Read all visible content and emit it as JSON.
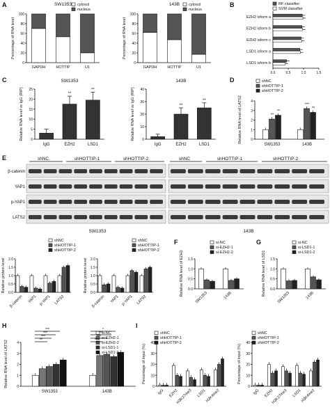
{
  "panels": {
    "A": {
      "letter": "A",
      "ylabel": "Percentage of RNA level",
      "legend": [
        "cytosol",
        "nucleus"
      ],
      "colors": {
        "cytosol": "#ffffff",
        "nucleus": "#555555"
      },
      "charts": [
        {
          "title": "SW1353",
          "categories": [
            "GAPDH",
            "HOTTIP",
            "U1"
          ],
          "cytosol": [
            70,
            53,
            20
          ],
          "ylim": [
            0,
            100
          ],
          "ticks": [
            "0",
            "20",
            "40",
            "60",
            "80",
            "100"
          ]
        },
        {
          "title": "143B",
          "categories": [
            "GAPDH",
            "HOTTIP",
            "U1"
          ],
          "cytosol": [
            62,
            47,
            17
          ],
          "ylim": [
            0,
            100
          ],
          "ticks": [
            "0",
            "20",
            "40",
            "60",
            "80",
            "100"
          ]
        }
      ]
    },
    "B": {
      "letter": "B",
      "legend": [
        "RF classifier",
        "SVM classifier"
      ],
      "categories": [
        "EZH2 isform a",
        "EZH2 isform b",
        "EZH2 isform c",
        "LSD1 isform a",
        "LSD1 isform b"
      ],
      "rf": [
        0.96,
        0.95,
        0.92,
        0.88,
        0.45
      ],
      "svm": [
        0.98,
        0.97,
        0.94,
        0.9,
        0.4
      ],
      "ticks": [
        "0.0",
        "0.5",
        "1.0",
        "1.5"
      ],
      "xlim": [
        0,
        1.5
      ]
    },
    "C": {
      "letter": "C",
      "charts": [
        {
          "title": "SW1353",
          "ylabel": "Relative RNA level vs IgG (RIP)",
          "categories": [
            "IgG",
            "EZH2",
            "LSD1"
          ],
          "values": [
            3,
            17.5,
            19.5
          ],
          "errors": [
            2,
            4,
            4
          ],
          "ylim": [
            0,
            25
          ],
          "ticks": [
            "0",
            "5",
            "10",
            "15",
            "20",
            "25"
          ],
          "stars": [
            "",
            "**",
            "**"
          ]
        },
        {
          "title": "143B",
          "ylabel": "Relative RNA level vs IgG (RIP)",
          "categories": [
            "IgG",
            "EZH2",
            "LSD1"
          ],
          "values": [
            2,
            20,
            25
          ],
          "errors": [
            2,
            5,
            4
          ],
          "ylim": [
            0,
            40
          ],
          "ticks": [
            "0",
            "10",
            "20",
            "30",
            "40"
          ],
          "stars": [
            "",
            "**",
            "**"
          ]
        }
      ]
    },
    "D": {
      "letter": "D",
      "ylabel": "Relative RNA level of LATS2",
      "legend": [
        "shNC",
        "shHOTTIP-1",
        "shHOTTIP-2"
      ],
      "groups": [
        "SW1353",
        "143B"
      ],
      "series": [
        {
          "name": "shNC",
          "values": [
            1.0,
            1.0
          ]
        },
        {
          "name": "shHOTTIP-1",
          "values": [
            2.1,
            3.2
          ]
        },
        {
          "name": "shHOTTIP-2",
          "values": [
            2.5,
            2.8
          ]
        }
      ],
      "stars": [
        [
          "",
          "**",
          "**"
        ],
        [
          "",
          "***",
          "**"
        ]
      ],
      "ylim": [
        0,
        4
      ],
      "ticks": [
        "0",
        "1",
        "2",
        "3",
        "4"
      ]
    },
    "E": {
      "letter": "E",
      "left_header": [
        "shNC",
        "shHOTTIP-1",
        "shHOTTIP-2"
      ],
      "right_header": [
        "shNC",
        "shHOTTIP-1",
        "shHOTTIP-2"
      ],
      "rows": [
        "β-catenin",
        "YAP1",
        "p-YAP1",
        "LATS2"
      ],
      "left_title": "SW1353",
      "right_title": "143B",
      "quant": {
        "ylabel": "Relative protein level",
        "legend": [
          "shNC",
          "shHOTTIP-1",
          "shHOTTIP-2"
        ],
        "categories": [
          "β-catenin",
          "YAP1",
          "p-YAP1",
          "LATS2"
        ],
        "sw1353": [
          [
            1.0,
            0.35,
            0.3
          ],
          [
            1.0,
            0.25,
            0.2
          ],
          [
            1.0,
            0.55,
            0.65
          ],
          [
            1.0,
            1.5,
            1.6
          ]
        ],
        "b143": [
          [
            1.0,
            0.45,
            0.5
          ],
          [
            1.0,
            0.3,
            0.25
          ],
          [
            1.0,
            1.3,
            1.2
          ],
          [
            1.0,
            1.4,
            1.5
          ]
        ],
        "ylim": [
          0,
          2.0
        ],
        "ticks": [
          "0.0",
          "0.5",
          "1.0",
          "1.5",
          "2.0"
        ]
      }
    },
    "F": {
      "letter": "F",
      "ylabel": "Relative RNA level of EZH2",
      "legend": [
        "si-NC",
        "si-EZH2-1",
        "si-EZH2-2"
      ],
      "groups": [
        "SW1353",
        "143B"
      ],
      "series": [
        {
          "name": "si-NC",
          "values": [
            1.0,
            1.0
          ]
        },
        {
          "name": "si-EZH2-1",
          "values": [
            0.45,
            0.42
          ]
        },
        {
          "name": "si-EZH2-2",
          "values": [
            0.38,
            0.5
          ]
        }
      ],
      "ylim": [
        0,
        1.5
      ],
      "ticks": [
        "0.0",
        "0.5",
        "1.0",
        "1.5"
      ]
    },
    "G": {
      "letter": "G",
      "ylabel": "Relative RNA level of LSD1",
      "legend": [
        "si-NC",
        "si-LSD1-1",
        "si-LSD1-2"
      ],
      "groups": [
        "SW1353",
        "143B"
      ],
      "series": [
        {
          "name": "si-NC",
          "values": [
            1.0,
            1.0
          ]
        },
        {
          "name": "si-LSD1-1",
          "values": [
            0.4,
            0.6
          ]
        },
        {
          "name": "si-LSD1-2",
          "values": [
            0.42,
            0.45
          ]
        }
      ],
      "ylim": [
        0,
        1.5
      ],
      "ticks": [
        "0.0",
        "0.5",
        "1.0",
        "1.5"
      ]
    },
    "H": {
      "letter": "H",
      "ylabel": "Relative RNA level of LATS2",
      "legend": [
        "si-NC",
        "si-EZH2-1",
        "si-EZH2-2",
        "si-LSD1-1",
        "si-LSD1-2"
      ],
      "groups": [
        "SW1353",
        "143B"
      ],
      "series": [
        {
          "name": "si-NC",
          "values": [
            1.0,
            1.0
          ]
        },
        {
          "name": "si-EZH2-1",
          "values": [
            1.6,
            2.8
          ]
        },
        {
          "name": "si-EZH2-2",
          "values": [
            1.8,
            2.9
          ]
        },
        {
          "name": "si-LSD1-1",
          "values": [
            2.0,
            2.7
          ]
        },
        {
          "name": "si-LSD1-2",
          "values": [
            2.4,
            3.1
          ]
        }
      ],
      "ylim": [
        0,
        4
      ],
      "ticks": [
        "0",
        "1",
        "2",
        "3",
        "4"
      ],
      "sig": [
        "***",
        "***",
        "***",
        "**",
        "*",
        "***",
        "***",
        "***"
      ]
    },
    "I": {
      "letter": "I",
      "legend": [
        "shNC",
        "shHOTTIP-1",
        "shHOTTIP-2"
      ],
      "categories": [
        "IgG",
        "EZH2",
        "H3K27me3",
        "LSD1",
        "H3K4me2"
      ],
      "charts": [
        {
          "ylabel": "Percentage of Input (%)",
          "values": [
            [
              1,
              1,
              1
            ],
            [
              19,
              10,
              9
            ],
            [
              14,
              8,
              6
            ],
            [
              15,
              10,
              9
            ],
            [
              15,
              20,
              25
            ]
          ],
          "ylim": [
            0,
            40
          ],
          "ticks": [
            "0",
            "10",
            "20",
            "30",
            "40"
          ]
        },
        {
          "ylabel": "Percentage of Input (%)",
          "values": [
            [
              1,
              1,
              1
            ],
            [
              20,
              12,
              14
            ],
            [
              18,
              14,
              12
            ],
            [
              19,
              12,
              11
            ],
            [
              14,
              22,
              24
            ]
          ],
          "ylim": [
            0,
            40
          ],
          "ticks": [
            "0",
            "10",
            "20",
            "30",
            "40"
          ]
        }
      ]
    }
  }
}
